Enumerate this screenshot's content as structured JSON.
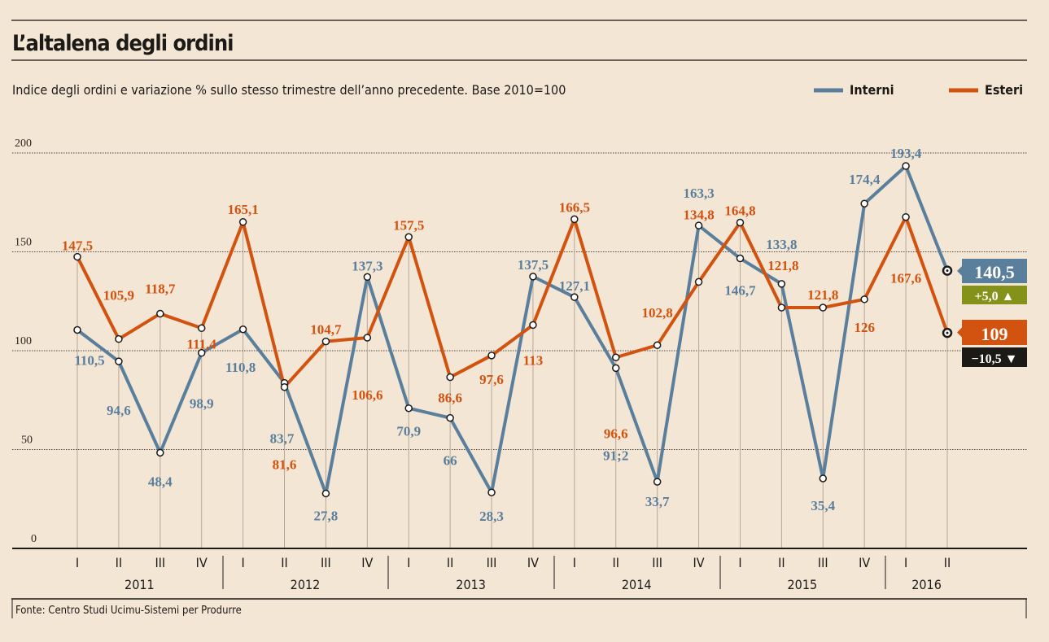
{
  "title": "L’altalena degli ordini",
  "subtitle": "Indice degli ordini e variazione % sullo stesso trimestre dell’anno precedente. Base 2010=100",
  "source": "Fonte: Centro Studi Ucimu-Sistemi per Produrre",
  "colors": {
    "background": "#f4e6d5",
    "interni": "#5a7f9c",
    "esteri": "#d2520f",
    "positive": "#84921a",
    "negative": "#1c1a17"
  },
  "chart_data": {
    "type": "line",
    "title": "L’altalena degli ordini",
    "xlabel": "",
    "ylabel": "",
    "ylim": [
      0,
      200
    ],
    "yticks": [
      "0",
      "50",
      "100",
      "150",
      "200"
    ],
    "ytick_values": [
      0,
      50,
      100,
      150,
      200
    ],
    "grid": true,
    "legend_position": "top-right",
    "quarters": [
      "I",
      "II",
      "III",
      "IV",
      "I",
      "II",
      "III",
      "IV",
      "I",
      "II",
      "III",
      "IV",
      "I",
      "II",
      "III",
      "IV",
      "I",
      "II",
      "III",
      "IV",
      "I",
      "II"
    ],
    "years": [
      "2011",
      "2012",
      "2013",
      "2014",
      "2015",
      "2016"
    ],
    "series": [
      {
        "name": "Interni",
        "color": "#5a7f9c",
        "values": [
          110.5,
          94.6,
          48.4,
          98.9,
          110.8,
          83.7,
          27.8,
          137.3,
          70.9,
          66,
          28.3,
          137.5,
          127.1,
          91.2,
          33.7,
          163.3,
          146.7,
          133.8,
          35.4,
          174.4,
          193.4,
          140.5
        ],
        "labels": [
          "110,5",
          "94,6",
          "48,4",
          "98,9",
          "110,8",
          "83,7",
          "27,8",
          "137,3",
          "70,9",
          "66",
          "28,3",
          "137,5",
          "127,1",
          "91;2",
          "33,7",
          "163,3",
          "146,7",
          "133,8",
          "35,4",
          "174,4",
          "193,4",
          "140,5"
        ],
        "last_change": "+5,0 ▲"
      },
      {
        "name": "Esteri",
        "color": "#d2520f",
        "values": [
          147.5,
          105.9,
          118.7,
          111.4,
          165.1,
          81.6,
          104.7,
          106.6,
          157.5,
          86.6,
          97.6,
          113,
          166.5,
          96.6,
          102.8,
          134.8,
          164.8,
          121.8,
          121.8,
          126,
          167.6,
          109
        ],
        "labels": [
          "147,5",
          "105,9",
          "118,7",
          "111,4",
          "165,1",
          "81,6",
          "104,7",
          "106,6",
          "157,5",
          "86,6",
          "97,6",
          "113",
          "166,5",
          "96,6",
          "102,8",
          "134,8",
          "164,8",
          "121,8",
          "121,8",
          "126",
          "167,6",
          "109"
        ],
        "last_change": "−10,5 ▼"
      }
    ]
  }
}
